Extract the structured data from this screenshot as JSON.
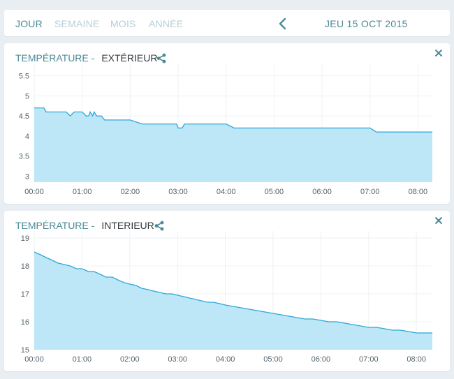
{
  "toolbar": {
    "tabs": [
      {
        "label": "JOUR",
        "active": true
      },
      {
        "label": "SEMAINE",
        "active": false
      },
      {
        "label": "MOIS",
        "active": false
      },
      {
        "label": "ANNÉE",
        "active": false
      }
    ],
    "prev_icon": "chevron-left-icon",
    "date": "JEU 15 OCT 2015"
  },
  "colors": {
    "accent": "#4b8b98",
    "inactive_tab": "#b5cfd5",
    "line": "#2da8d8",
    "area_fill": "#bde6f6",
    "background": "#e9eef3"
  },
  "cards": [
    {
      "title_prefix": "TEMPÉRATURE -",
      "title_name": "EXTÉRIEUR",
      "share_icon": "share-icon",
      "close_icon": "close-icon"
    },
    {
      "title_prefix": "TEMPÉRATURE -",
      "title_name": "INTERIEUR",
      "share_icon": "share-icon",
      "close_icon": "close-icon"
    }
  ],
  "chart_data": [
    {
      "type": "area",
      "title": "",
      "xlabel": "",
      "ylabel": "",
      "x_ticks": [
        "00:00",
        "01:00",
        "02:00",
        "03:00",
        "04:00",
        "05:00",
        "06:00",
        "07:00",
        "08:00"
      ],
      "y_ticks": [
        "3",
        "3.5",
        "4",
        "4.5",
        "5",
        "5.5"
      ],
      "ylim": [
        2.85,
        5.65
      ],
      "xlim": [
        "00:00",
        "08:18"
      ],
      "grid": true,
      "x": [
        "00:00",
        "00:12",
        "00:15",
        "00:40",
        "00:45",
        "00:50",
        "01:00",
        "01:05",
        "01:08",
        "01:10",
        "01:13",
        "01:15",
        "01:18",
        "01:20",
        "01:22",
        "01:24",
        "01:28",
        "01:31",
        "01:35",
        "01:40",
        "02:00",
        "02:15",
        "02:18",
        "02:58",
        "03:00",
        "03:02",
        "03:05",
        "03:08",
        "03:12",
        "03:15",
        "03:20",
        "04:00",
        "04:10",
        "04:15",
        "07:00",
        "07:08",
        "07:12",
        "08:18"
      ],
      "y": [
        4.7,
        4.7,
        4.6,
        4.6,
        4.5,
        4.6,
        4.6,
        4.5,
        4.5,
        4.6,
        4.5,
        4.6,
        4.5,
        4.5,
        4.5,
        4.5,
        4.4,
        4.4,
        4.4,
        4.4,
        4.4,
        4.3,
        4.3,
        4.3,
        4.2,
        4.2,
        4.2,
        4.3,
        4.3,
        4.3,
        4.3,
        4.3,
        4.2,
        4.2,
        4.2,
        4.1,
        4.1,
        4.1
      ]
    },
    {
      "type": "area",
      "title": "",
      "xlabel": "",
      "ylabel": "",
      "x_ticks": [
        "00:00",
        "01:00",
        "02:00",
        "03:00",
        "04:00",
        "05:00",
        "06:00",
        "07:00",
        "08:00"
      ],
      "y_ticks": [
        "15",
        "16",
        "17",
        "18",
        "19"
      ],
      "ylim": [
        15,
        19
      ],
      "xlim": [
        "00:00",
        "08:20"
      ],
      "grid": true,
      "x": [
        "00:00",
        "00:08",
        "00:15",
        "00:23",
        "00:30",
        "00:38",
        "00:45",
        "00:53",
        "01:00",
        "01:08",
        "01:15",
        "01:23",
        "01:30",
        "01:38",
        "01:45",
        "01:53",
        "02:00",
        "02:08",
        "02:15",
        "02:23",
        "02:30",
        "02:38",
        "02:45",
        "02:53",
        "03:00",
        "03:08",
        "03:15",
        "03:23",
        "03:30",
        "03:38",
        "03:45",
        "03:53",
        "04:00",
        "04:10",
        "04:20",
        "04:30",
        "04:40",
        "04:50",
        "05:00",
        "05:10",
        "05:20",
        "05:30",
        "05:40",
        "05:50",
        "06:00",
        "06:10",
        "06:20",
        "06:30",
        "06:40",
        "06:50",
        "07:00",
        "07:10",
        "07:20",
        "07:30",
        "07:40",
        "07:50",
        "08:00",
        "08:10",
        "08:20"
      ],
      "y": [
        18.5,
        18.4,
        18.3,
        18.2,
        18.1,
        18.05,
        18,
        17.9,
        17.9,
        17.8,
        17.8,
        17.7,
        17.6,
        17.6,
        17.5,
        17.4,
        17.35,
        17.3,
        17.2,
        17.15,
        17.1,
        17.05,
        17,
        17,
        16.95,
        16.9,
        16.85,
        16.8,
        16.75,
        16.7,
        16.7,
        16.65,
        16.6,
        16.55,
        16.5,
        16.45,
        16.4,
        16.35,
        16.3,
        16.25,
        16.2,
        16.15,
        16.1,
        16.1,
        16.05,
        16,
        16,
        15.95,
        15.9,
        15.85,
        15.8,
        15.8,
        15.75,
        15.7,
        15.7,
        15.65,
        15.6,
        15.6,
        15.6
      ]
    }
  ]
}
